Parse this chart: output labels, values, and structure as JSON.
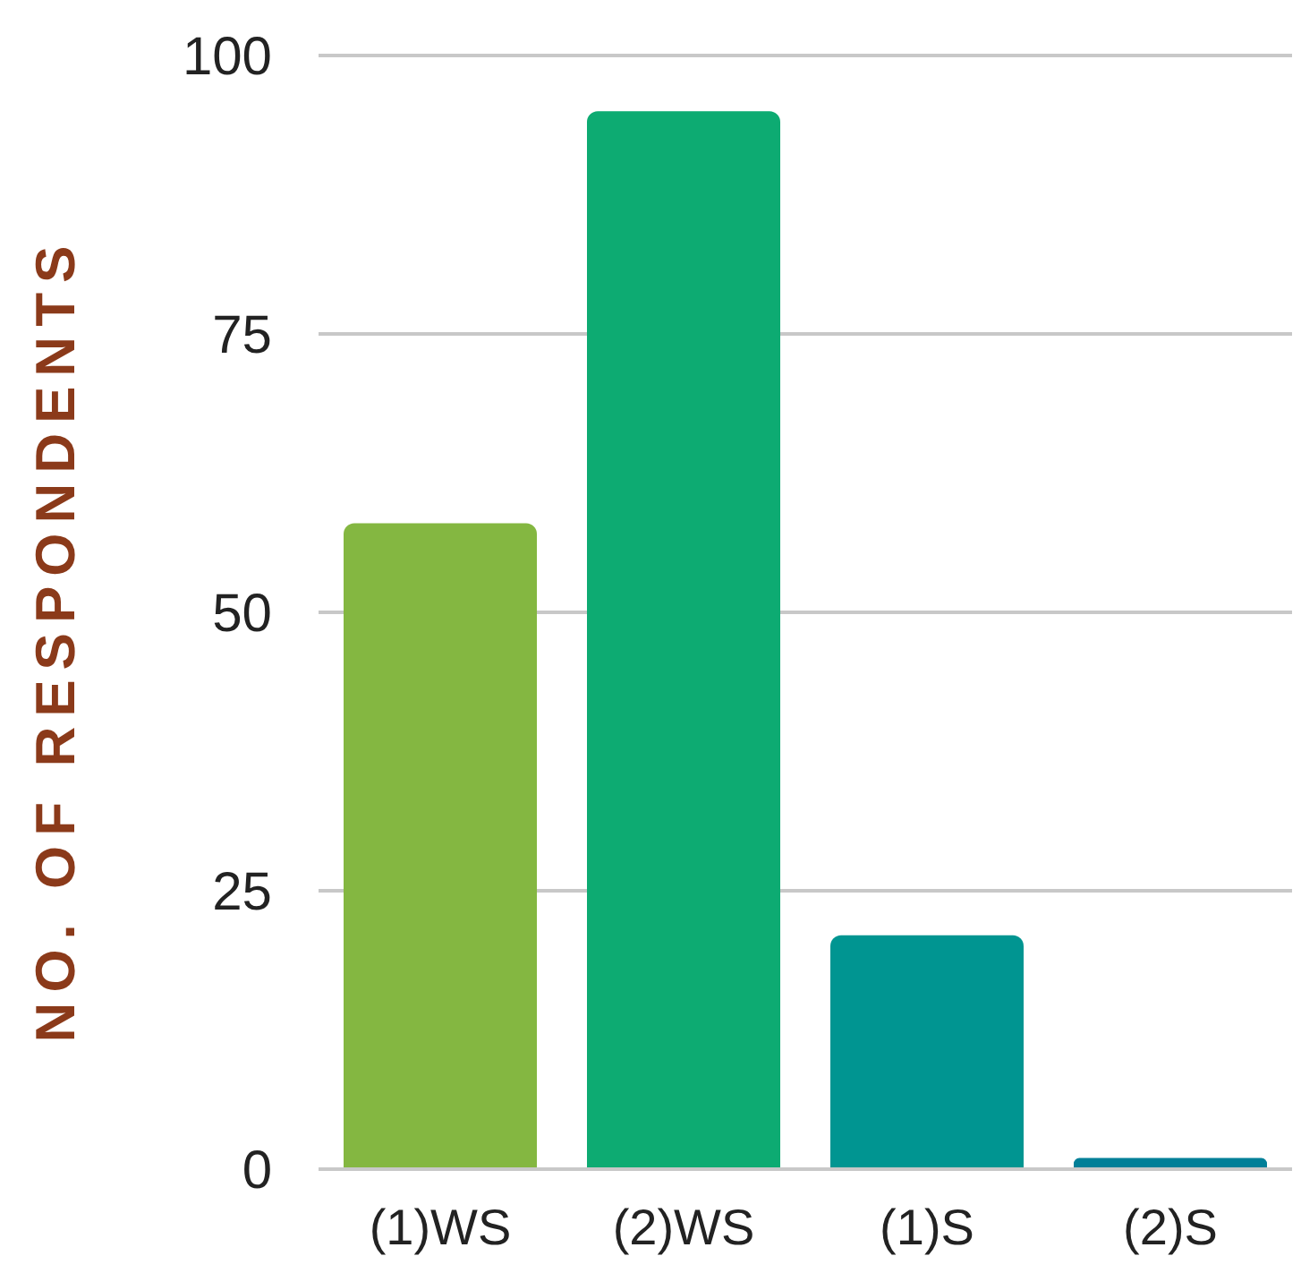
{
  "chart_data": {
    "type": "bar",
    "ylabel": "NO. OF RESPONDENTS",
    "categories": [
      "(1)WS",
      "(2)WS",
      "(1)S",
      "(2)S"
    ],
    "values": [
      58,
      95,
      21,
      1
    ],
    "colors": [
      "#84b741",
      "#0dab72",
      "#009591",
      "#007f98"
    ],
    "ylim": [
      0,
      100
    ],
    "yticks": [
      0,
      25,
      50,
      75,
      100
    ],
    "grid": "y"
  }
}
